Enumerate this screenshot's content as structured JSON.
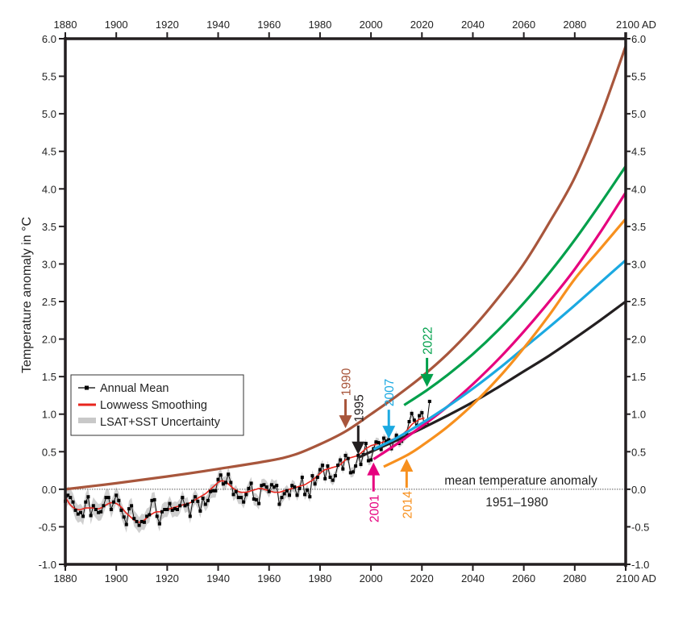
{
  "chart_data": {
    "type": "line",
    "title": "",
    "ylabel": "Temperature anomaly in °C",
    "xlabel": "",
    "xlim": [
      1880,
      2100
    ],
    "ylim": [
      -1.0,
      6.0
    ],
    "x_ticks": [
      1880,
      1900,
      1920,
      1940,
      1960,
      1980,
      2000,
      2020,
      2040,
      2060,
      2080,
      2100
    ],
    "x_tick_labels": [
      "1880",
      "1900",
      "1920",
      "1940",
      "1960",
      "1980",
      "2000",
      "2020",
      "2040",
      "2060",
      "2080",
      "2100 AD"
    ],
    "y_ticks": [
      -1.0,
      -0.5,
      0.0,
      0.5,
      1.0,
      1.5,
      2.0,
      2.5,
      3.0,
      3.5,
      4.0,
      4.5,
      5.0,
      5.5,
      6.0
    ],
    "y_tick_labels": [
      "-1.0",
      "-0.5",
      "0.0",
      "0.5",
      "1.0",
      "1.5",
      "2.0",
      "2.5",
      "3.0",
      "3.5",
      "4.0",
      "4.5",
      "5.0",
      "5.5",
      "6.0"
    ],
    "grid": false,
    "baseline": {
      "value": 0.0,
      "style": "dotted",
      "label_line1": "mean temperature anomaly",
      "label_line2": "1951–1980"
    },
    "legend": {
      "position": "middle-left",
      "entries": [
        {
          "label": "Annual Mean",
          "color": "#000000",
          "kind": "line-marker"
        },
        {
          "label": "Lowwess Smoothing",
          "color": "#e8251d",
          "kind": "line"
        },
        {
          "label": "LSAT+SST Uncertainty",
          "color": "#c8c8c8",
          "kind": "band"
        }
      ]
    },
    "observations": {
      "years_start": 1880,
      "annual_mean": [
        -0.16,
        -0.08,
        -0.11,
        -0.17,
        -0.28,
        -0.33,
        -0.31,
        -0.36,
        -0.17,
        -0.1,
        -0.35,
        -0.22,
        -0.27,
        -0.31,
        -0.3,
        -0.22,
        -0.11,
        -0.11,
        -0.27,
        -0.17,
        -0.08,
        -0.15,
        -0.28,
        -0.37,
        -0.47,
        -0.26,
        -0.22,
        -0.39,
        -0.43,
        -0.48,
        -0.43,
        -0.44,
        -0.36,
        -0.34,
        -0.15,
        -0.14,
        -0.36,
        -0.46,
        -0.3,
        -0.27,
        -0.27,
        -0.19,
        -0.28,
        -0.26,
        -0.27,
        -0.22,
        -0.11,
        -0.22,
        -0.2,
        -0.36,
        -0.16,
        -0.1,
        -0.16,
        -0.29,
        -0.12,
        -0.2,
        -0.15,
        -0.03,
        -0.02,
        -0.02,
        0.13,
        0.19,
        0.07,
        0.09,
        0.2,
        0.09,
        -0.07,
        -0.03,
        -0.11,
        -0.11,
        -0.17,
        -0.07,
        0.01,
        0.08,
        -0.13,
        -0.14,
        -0.19,
        0.05,
        0.06,
        0.03,
        -0.03,
        0.06,
        0.03,
        0.05,
        -0.2,
        -0.11,
        -0.06,
        -0.02,
        -0.08,
        0.05,
        0.03,
        -0.08,
        0.01,
        0.16,
        -0.07,
        -0.01,
        -0.1,
        0.18,
        0.07,
        0.16,
        0.26,
        0.32,
        0.14,
        0.31,
        0.16,
        0.12,
        0.18,
        0.32,
        0.39,
        0.27,
        0.45,
        0.41,
        0.22,
        0.23,
        0.31,
        0.45,
        0.33,
        0.46,
        0.61,
        0.38,
        0.39,
        0.54,
        0.63,
        0.62,
        0.53,
        0.68,
        0.64,
        0.66,
        0.54,
        0.65,
        0.72,
        0.61,
        0.64,
        0.68,
        0.75,
        0.9,
        1.01,
        0.92,
        0.85,
        0.98,
        1.02,
        0.85,
        0.89,
        1.17
      ],
      "lowess": [
        -0.1,
        -0.16,
        -0.21,
        -0.24,
        -0.26,
        -0.27,
        -0.27,
        -0.26,
        -0.25,
        -0.25,
        -0.25,
        -0.25,
        -0.26,
        -0.26,
        -0.25,
        -0.23,
        -0.21,
        -0.19,
        -0.18,
        -0.18,
        -0.19,
        -0.21,
        -0.24,
        -0.28,
        -0.32,
        -0.35,
        -0.38,
        -0.41,
        -0.43,
        -0.44,
        -0.43,
        -0.41,
        -0.38,
        -0.35,
        -0.33,
        -0.31,
        -0.3,
        -0.3,
        -0.29,
        -0.28,
        -0.27,
        -0.26,
        -0.25,
        -0.24,
        -0.23,
        -0.22,
        -0.21,
        -0.2,
        -0.19,
        -0.18,
        -0.16,
        -0.14,
        -0.12,
        -0.1,
        -0.08,
        -0.06,
        -0.03,
        0.0,
        0.03,
        0.06,
        0.09,
        0.11,
        0.11,
        0.1,
        0.07,
        0.04,
        0.01,
        -0.01,
        -0.03,
        -0.04,
        -0.04,
        -0.04,
        -0.03,
        -0.02,
        -0.01,
        0.0,
        0.01,
        0.01,
        0.0,
        -0.01,
        -0.02,
        -0.03,
        -0.04,
        -0.04,
        -0.04,
        -0.03,
        -0.02,
        -0.01,
        0.0,
        0.01,
        0.02,
        0.03,
        0.04,
        0.05,
        0.06,
        0.08,
        0.1,
        0.12,
        0.15,
        0.18,
        0.21,
        0.24,
        0.26,
        0.27,
        0.28,
        0.29,
        0.3,
        0.31,
        0.33,
        0.36,
        0.39,
        0.41,
        0.42,
        0.43,
        0.44,
        0.46,
        0.48,
        0.51,
        0.54,
        0.56,
        0.58,
        0.59,
        0.6,
        0.61,
        0.62,
        0.63,
        0.64,
        0.65,
        0.66,
        0.67,
        0.68,
        0.7,
        0.72,
        0.75,
        0.78,
        0.82,
        0.86,
        0.89,
        0.91,
        0.93,
        0.94,
        0.95,
        0.96
      ],
      "uncertainty_halfwidth_start": 0.12,
      "uncertainty_halfwidth_end": 0.05
    },
    "series": [
      {
        "name": "1990",
        "label": "1990",
        "color": "#a8563c",
        "x": [
          1880,
          1900,
          1920,
          1940,
          1960,
          1970,
          1980,
          1990,
          2000,
          2010,
          2020,
          2030,
          2040,
          2050,
          2060,
          2070,
          2080,
          2090,
          2100
        ],
        "values": [
          0.0,
          0.08,
          0.17,
          0.27,
          0.38,
          0.46,
          0.6,
          0.77,
          1.0,
          1.24,
          1.5,
          1.8,
          2.15,
          2.55,
          3.0,
          3.55,
          4.15,
          4.95,
          5.9
        ]
      },
      {
        "name": "1995",
        "label": "1995",
        "color": "#231f20",
        "x": [
          1995,
          2000,
          2010,
          2020,
          2030,
          2040,
          2050,
          2060,
          2070,
          2080,
          2090,
          2100
        ],
        "values": [
          0.42,
          0.5,
          0.65,
          0.81,
          0.98,
          1.16,
          1.36,
          1.57,
          1.78,
          2.01,
          2.25,
          2.5
        ]
      },
      {
        "name": "2001",
        "label": "2001",
        "color": "#e6007e",
        "x": [
          2001,
          2010,
          2020,
          2030,
          2040,
          2050,
          2060,
          2070,
          2080,
          2090,
          2100
        ],
        "values": [
          0.4,
          0.6,
          0.84,
          1.1,
          1.4,
          1.73,
          2.1,
          2.5,
          2.93,
          3.42,
          3.95
        ]
      },
      {
        "name": "2007",
        "label": "2007",
        "color": "#1ba9e1",
        "x": [
          2001,
          2007,
          2010,
          2020,
          2030,
          2040,
          2050,
          2060,
          2070,
          2080,
          2090,
          2100
        ],
        "values": [
          0.53,
          0.63,
          0.68,
          0.88,
          1.1,
          1.34,
          1.6,
          1.88,
          2.16,
          2.45,
          2.75,
          3.05
        ]
      },
      {
        "name": "2014",
        "label": "2014",
        "color": "#f7901e",
        "x": [
          2005,
          2014,
          2020,
          2030,
          2040,
          2050,
          2060,
          2070,
          2080,
          2090,
          2100
        ],
        "values": [
          0.3,
          0.45,
          0.58,
          0.83,
          1.13,
          1.48,
          1.88,
          2.32,
          2.8,
          3.2,
          3.6
        ]
      },
      {
        "name": "2022",
        "label": "2022",
        "color": "#00a04b",
        "x": [
          2013,
          2022,
          2030,
          2040,
          2050,
          2060,
          2070,
          2080,
          2090,
          2100
        ],
        "values": [
          1.12,
          1.32,
          1.52,
          1.8,
          2.12,
          2.48,
          2.88,
          3.32,
          3.8,
          4.3
        ]
      }
    ],
    "annotations": [
      {
        "text": "1990",
        "year": 1990,
        "arrow_direction": "down",
        "color": "#a8563c"
      },
      {
        "text": "1995",
        "year": 1995,
        "arrow_direction": "down",
        "color": "#231f20"
      },
      {
        "text": "2001",
        "year": 2001,
        "arrow_direction": "up",
        "color": "#e6007e"
      },
      {
        "text": "2007",
        "year": 2007,
        "arrow_direction": "down",
        "color": "#1ba9e1"
      },
      {
        "text": "2014",
        "year": 2014,
        "arrow_direction": "up",
        "color": "#f7901e"
      },
      {
        "text": "2022",
        "year": 2022,
        "arrow_direction": "down",
        "color": "#00a04b"
      }
    ]
  }
}
